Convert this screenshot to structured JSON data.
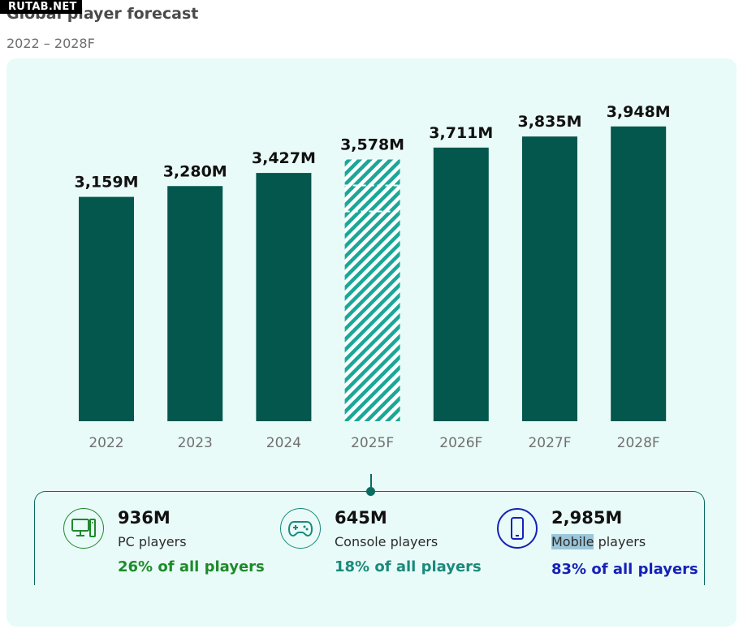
{
  "watermark": "RUTAB.NET",
  "header": {
    "title": "Global player forecast",
    "subtitle": "2022 – 2028F"
  },
  "chart_data": {
    "type": "bar",
    "title": "Global player forecast",
    "subtitle": "2022 – 2028F",
    "categories": [
      "2022",
      "2023",
      "2024",
      "2025F",
      "2026F",
      "2027F",
      "2028F"
    ],
    "values": [
      3159,
      3280,
      3427,
      3578,
      3711,
      3835,
      3948
    ],
    "value_labels": [
      "3,159M",
      "3,280M",
      "3,427M",
      "3,578M",
      "3,711M",
      "3,835M",
      "3,948M"
    ],
    "highlighted_index": 3,
    "highlight_style": "hatched",
    "unit": "M",
    "xlabel": "",
    "ylabel": "",
    "grid": false,
    "colors": {
      "bar": "#03574d",
      "hatch": "#1aa797",
      "background": "#e9fbf8"
    }
  },
  "summary": {
    "pc": {
      "icon": "desktop-pc-icon",
      "value": "936M",
      "label": "PC players",
      "share": "26% of all players",
      "color": "#1e8a2b"
    },
    "console": {
      "icon": "gamepad-icon",
      "value": "645M",
      "label": "Console players",
      "share": "18% of all players",
      "color": "#1a8a7c"
    },
    "mobile": {
      "icon": "smartphone-icon",
      "value": "2,985M",
      "label_highlight": "Mobile",
      "label_rest": " players",
      "share": "83% of all players",
      "color": "#1621b8"
    }
  }
}
